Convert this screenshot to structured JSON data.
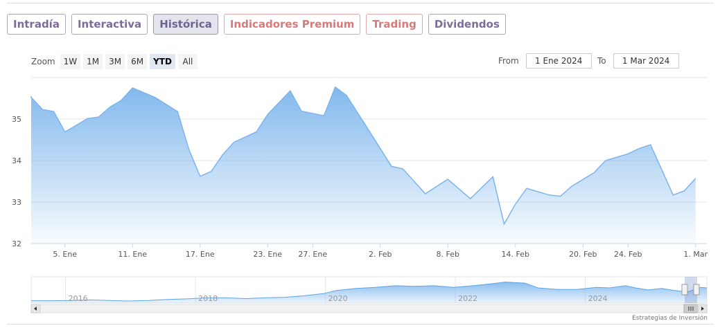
{
  "tabs": [
    {
      "label": "Intradía",
      "style": "purple"
    },
    {
      "label": "Interactiva",
      "style": "purple"
    },
    {
      "label": "Histórica",
      "style": "active"
    },
    {
      "label": "Indicadores Premium",
      "style": "red"
    },
    {
      "label": "Trading",
      "style": "red"
    },
    {
      "label": "Dividendos",
      "style": "purple"
    }
  ],
  "zoom": {
    "label": "Zoom",
    "buttons": [
      "1W",
      "1M",
      "3M",
      "6M",
      "YTD",
      "All"
    ],
    "active": "YTD"
  },
  "range": {
    "from_label": "From",
    "from_value": "1 Ene 2024",
    "to_label": "To",
    "to_value": "1 Mar 2024"
  },
  "credit": "Estrategias de Inversión",
  "chart_data": {
    "type": "area",
    "title": "",
    "xlabel": "",
    "ylabel": "",
    "ylim": [
      32,
      36
    ],
    "y_ticks": [
      32,
      33,
      34,
      35
    ],
    "x_tick_labels": [
      "5. Ene",
      "11. Ene",
      "17. Ene",
      "23. Ene",
      "27. Ene",
      "2. Feb",
      "8. Feb",
      "14. Feb",
      "20. Feb",
      "24. Feb",
      "1. Mar"
    ],
    "x_tick_dates": [
      "2024-01-05",
      "2024-01-11",
      "2024-01-17",
      "2024-01-23",
      "2024-01-27",
      "2024-02-02",
      "2024-02-08",
      "2024-02-14",
      "2024-02-20",
      "2024-02-24",
      "2024-03-01"
    ],
    "x_range": [
      "2024-01-02",
      "2024-03-02"
    ],
    "grid": true,
    "color": "#7cb5ec",
    "series": [
      {
        "points": [
          [
            "2024-01-02",
            35.55
          ],
          [
            "2024-01-02",
            35.52
          ],
          [
            "2024-01-03",
            35.23
          ],
          [
            "2024-01-04",
            35.18
          ],
          [
            "2024-01-05",
            34.69
          ],
          [
            "2024-01-07",
            35.01
          ],
          [
            "2024-01-08",
            35.05
          ],
          [
            "2024-01-09",
            35.29
          ],
          [
            "2024-01-10",
            35.45
          ],
          [
            "2024-01-11",
            35.75
          ],
          [
            "2024-01-13",
            35.52
          ],
          [
            "2024-01-15",
            35.18
          ],
          [
            "2024-01-16",
            34.27
          ],
          [
            "2024-01-17",
            33.62
          ],
          [
            "2024-01-18",
            33.74
          ],
          [
            "2024-01-19",
            34.14
          ],
          [
            "2024-01-20",
            34.44
          ],
          [
            "2024-01-22",
            34.69
          ],
          [
            "2024-01-23",
            35.11
          ],
          [
            "2024-01-25",
            35.68
          ],
          [
            "2024-01-26",
            35.19
          ],
          [
            "2024-01-28",
            35.08
          ],
          [
            "2024-01-29",
            35.77
          ],
          [
            "2024-01-30",
            35.57
          ],
          [
            "2024-02-01",
            34.72
          ],
          [
            "2024-02-03",
            33.86
          ],
          [
            "2024-02-04",
            33.8
          ],
          [
            "2024-02-06",
            33.2
          ],
          [
            "2024-02-08",
            33.55
          ],
          [
            "2024-02-10",
            33.08
          ],
          [
            "2024-02-12",
            33.61
          ],
          [
            "2024-02-13",
            32.47
          ],
          [
            "2024-02-14",
            32.95
          ],
          [
            "2024-02-15",
            33.33
          ],
          [
            "2024-02-17",
            33.17
          ],
          [
            "2024-02-18",
            33.14
          ],
          [
            "2024-02-19",
            33.38
          ],
          [
            "2024-02-21",
            33.71
          ],
          [
            "2024-02-22",
            34.0
          ],
          [
            "2024-02-24",
            34.16
          ],
          [
            "2024-02-25",
            34.29
          ],
          [
            "2024-02-26",
            34.38
          ],
          [
            "2024-02-28",
            33.17
          ],
          [
            "2024-02-29",
            33.27
          ],
          [
            "2024-03-01",
            33.57
          ]
        ]
      }
    ],
    "navigator": {
      "x_tick_labels": [
        "2016",
        "2018",
        "2020",
        "2022",
        "2024"
      ],
      "profile": [
        [
          2015.3,
          0.09
        ],
        [
          2015.6,
          0.09
        ],
        [
          2015.9,
          0.1
        ],
        [
          2016.2,
          0.12
        ],
        [
          2016.5,
          0.1
        ],
        [
          2016.8,
          0.08
        ],
        [
          2017.1,
          0.1
        ],
        [
          2017.4,
          0.14
        ],
        [
          2017.7,
          0.16
        ],
        [
          2018.0,
          0.2
        ],
        [
          2018.3,
          0.2
        ],
        [
          2018.6,
          0.17
        ],
        [
          2018.9,
          0.2
        ],
        [
          2019.2,
          0.22
        ],
        [
          2019.5,
          0.28
        ],
        [
          2019.8,
          0.36
        ],
        [
          2020.0,
          0.48
        ],
        [
          2020.3,
          0.56
        ],
        [
          2020.6,
          0.6
        ],
        [
          2020.9,
          0.66
        ],
        [
          2021.2,
          0.64
        ],
        [
          2021.5,
          0.66
        ],
        [
          2021.8,
          0.6
        ],
        [
          2022.1,
          0.66
        ],
        [
          2022.4,
          0.74
        ],
        [
          2022.6,
          0.8
        ],
        [
          2022.9,
          0.76
        ],
        [
          2023.1,
          0.58
        ],
        [
          2023.4,
          0.52
        ],
        [
          2023.7,
          0.52
        ],
        [
          2024.0,
          0.6
        ],
        [
          2024.2,
          0.58
        ],
        [
          2024.45,
          0.66
        ],
        [
          2024.6,
          0.58
        ],
        [
          2024.8,
          0.5
        ],
        [
          2025.0,
          0.56
        ],
        [
          2025.2,
          0.48
        ],
        [
          2025.4,
          0.42
        ],
        [
          2025.6,
          0.6
        ],
        [
          2025.7,
          0.58
        ]
      ]
    }
  }
}
